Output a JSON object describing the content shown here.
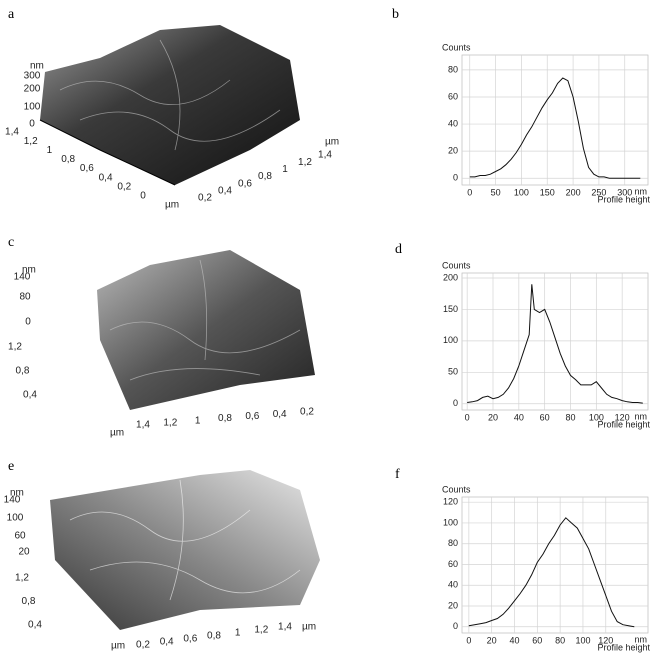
{
  "panel_labels": [
    "a",
    "b",
    "c",
    "d",
    "e",
    "f"
  ],
  "afm_images": [
    {
      "z_unit": "nm",
      "z_ticks": [
        "300",
        "200",
        "100",
        "0"
      ],
      "y_ticks": [
        "1,4",
        "1,2",
        "1",
        "0,8",
        "0,6",
        "0,4",
        "0,2",
        "0"
      ],
      "y_unit": "µm",
      "x_ticks": [
        "0,2",
        "0,4",
        "0,6",
        "0,8",
        "1",
        "1,2",
        "1,4"
      ],
      "x_unit": "µm"
    },
    {
      "z_unit": "nm",
      "z_ticks": [
        "140",
        "80",
        "0"
      ],
      "y_ticks": [
        "1,2",
        "0,8",
        "0,4"
      ],
      "y_unit": "µm",
      "x_ticks": [
        "1,4",
        "1,2",
        "1",
        "0,8",
        "0,6",
        "0,4",
        "0,2"
      ]
    },
    {
      "z_unit": "nm",
      "z_ticks": [
        "140",
        "100",
        "60",
        "20"
      ],
      "y_ticks": [
        "1,2",
        "0,8",
        "0,4"
      ],
      "y_unit": "µm",
      "x_ticks": [
        "0,2",
        "0,4",
        "0,6",
        "0,8",
        "1",
        "1,2",
        "1,4"
      ],
      "x_unit": "µm"
    }
  ],
  "chart_data": [
    {
      "type": "line",
      "ylabel": "Counts",
      "xlabel": "Profile height",
      "x_unit": "nm",
      "x": [
        0,
        10,
        20,
        30,
        40,
        50,
        60,
        70,
        80,
        90,
        100,
        110,
        120,
        130,
        140,
        150,
        160,
        170,
        180,
        190,
        200,
        210,
        220,
        230,
        240,
        250,
        260,
        270,
        280,
        290,
        300,
        310,
        320,
        330
      ],
      "series": [
        {
          "color": "#111111",
          "values": [
            1,
            1,
            2,
            2,
            3,
            5,
            7,
            10,
            14,
            19,
            25,
            32,
            38,
            45,
            52,
            58,
            63,
            70,
            74,
            72,
            60,
            42,
            22,
            8,
            3,
            1,
            1,
            0,
            0,
            0,
            0,
            0,
            0,
            0
          ]
        }
      ],
      "xlim": [
        -15,
        345
      ],
      "ylim": [
        -5,
        91
      ],
      "xticks": [
        0,
        50,
        100,
        150,
        200,
        250,
        300
      ],
      "yticks": [
        0,
        20,
        40,
        60,
        80
      ],
      "grid": true
    },
    {
      "type": "line",
      "ylabel": "Counts",
      "xlabel": "Profile height",
      "x_unit": "nm",
      "x": [
        0,
        4,
        8,
        12,
        16,
        20,
        24,
        28,
        32,
        36,
        40,
        44,
        48,
        50,
        52,
        56,
        60,
        64,
        68,
        72,
        76,
        80,
        84,
        88,
        92,
        96,
        100,
        104,
        108,
        112,
        116,
        120,
        124,
        128,
        132,
        136
      ],
      "series": [
        {
          "color": "#111111",
          "values": [
            2,
            3,
            5,
            10,
            12,
            8,
            10,
            15,
            25,
            40,
            60,
            85,
            110,
            190,
            150,
            145,
            150,
            130,
            105,
            80,
            60,
            45,
            38,
            30,
            30,
            30,
            35,
            25,
            15,
            10,
            8,
            5,
            3,
            2,
            2,
            1
          ]
        }
      ],
      "xlim": [
        -4,
        140
      ],
      "ylim": [
        -10,
        208
      ],
      "xticks": [
        0,
        20,
        40,
        60,
        80,
        100,
        120
      ],
      "yticks": [
        0,
        50,
        100,
        150,
        200
      ],
      "grid": true
    },
    {
      "type": "line",
      "ylabel": "Counts",
      "xlabel": "Profile height",
      "x_unit": "nm",
      "x": [
        0,
        5,
        10,
        15,
        20,
        25,
        30,
        35,
        40,
        45,
        50,
        55,
        60,
        65,
        70,
        75,
        80,
        85,
        90,
        95,
        100,
        105,
        110,
        115,
        120,
        125,
        130,
        135,
        140,
        145
      ],
      "series": [
        {
          "color": "#111111",
          "values": [
            1,
            2,
            3,
            4,
            6,
            8,
            12,
            18,
            25,
            32,
            40,
            50,
            62,
            70,
            80,
            88,
            98,
            105,
            100,
            95,
            85,
            75,
            60,
            45,
            30,
            15,
            5,
            2,
            1,
            0
          ]
        }
      ],
      "xlim": [
        -6,
        157
      ],
      "ylim": [
        -6,
        125
      ],
      "xticks": [
        0,
        20,
        40,
        60,
        80,
        100,
        120
      ],
      "yticks": [
        0,
        20,
        40,
        60,
        80,
        100,
        120
      ],
      "grid": true
    }
  ]
}
